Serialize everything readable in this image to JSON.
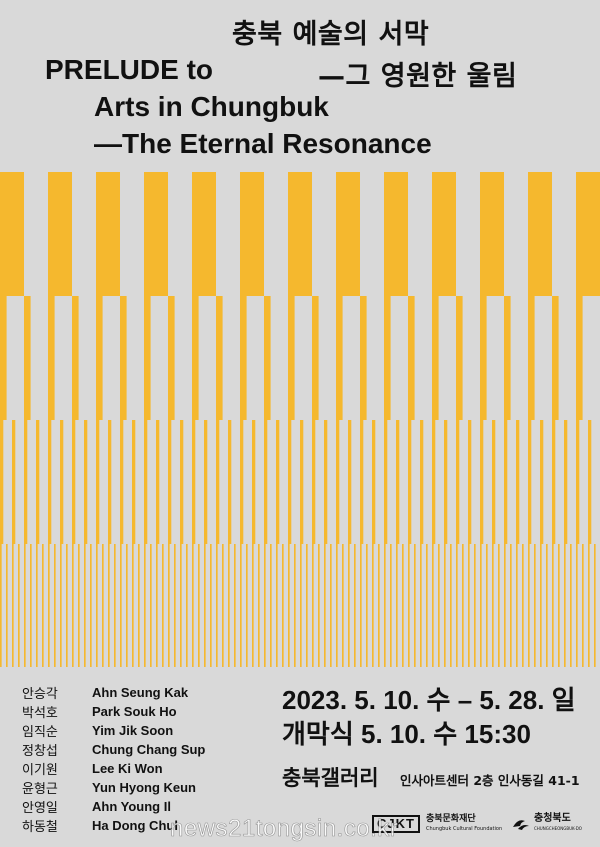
{
  "title": {
    "ko_line1": "충북 예술의 서막",
    "ko_line2": "—그 영원한 울림",
    "en_line1": "PRELUDE to",
    "en_line2": "Arts in Chungbuk",
    "en_line3": "—The Eternal Resonance"
  },
  "artists": [
    {
      "ko": "안승각",
      "en": "Ahn Seung Kak"
    },
    {
      "ko": "박석호",
      "en": "Park Souk Ho"
    },
    {
      "ko": "임직순",
      "en": "Yim Jik Soon"
    },
    {
      "ko": "정창섭",
      "en": "Chung Chang Sup"
    },
    {
      "ko": "이기원",
      "en": "Lee Ki Won"
    },
    {
      "ko": "윤형근",
      "en": "Yun Hyong Keun"
    },
    {
      "ko": "안영일",
      "en": "Ahn Young Il"
    },
    {
      "ko": "하동철",
      "en": "Ha Dong Chul"
    }
  ],
  "event": {
    "dates": "2023. 5. 10. 수 – 5. 28. 일",
    "opening": "개막식  5. 10. 수  15:30",
    "venue": "충북갤러리",
    "address": "인사아트센터 2층 인사동길 41-1"
  },
  "logos": {
    "foundation_mark": "CJKT",
    "foundation_name": "충북문화재단",
    "foundation_sub": "Chungbuk Cultural Foundation",
    "province_name": "충청북도",
    "province_sub": "CHUNGCHEONGBUK-DO"
  },
  "watermark": "news21tongsin.co.kr",
  "colors": {
    "background": "#d9d9d9",
    "accent": "#f5b82e",
    "text": "#111111"
  }
}
